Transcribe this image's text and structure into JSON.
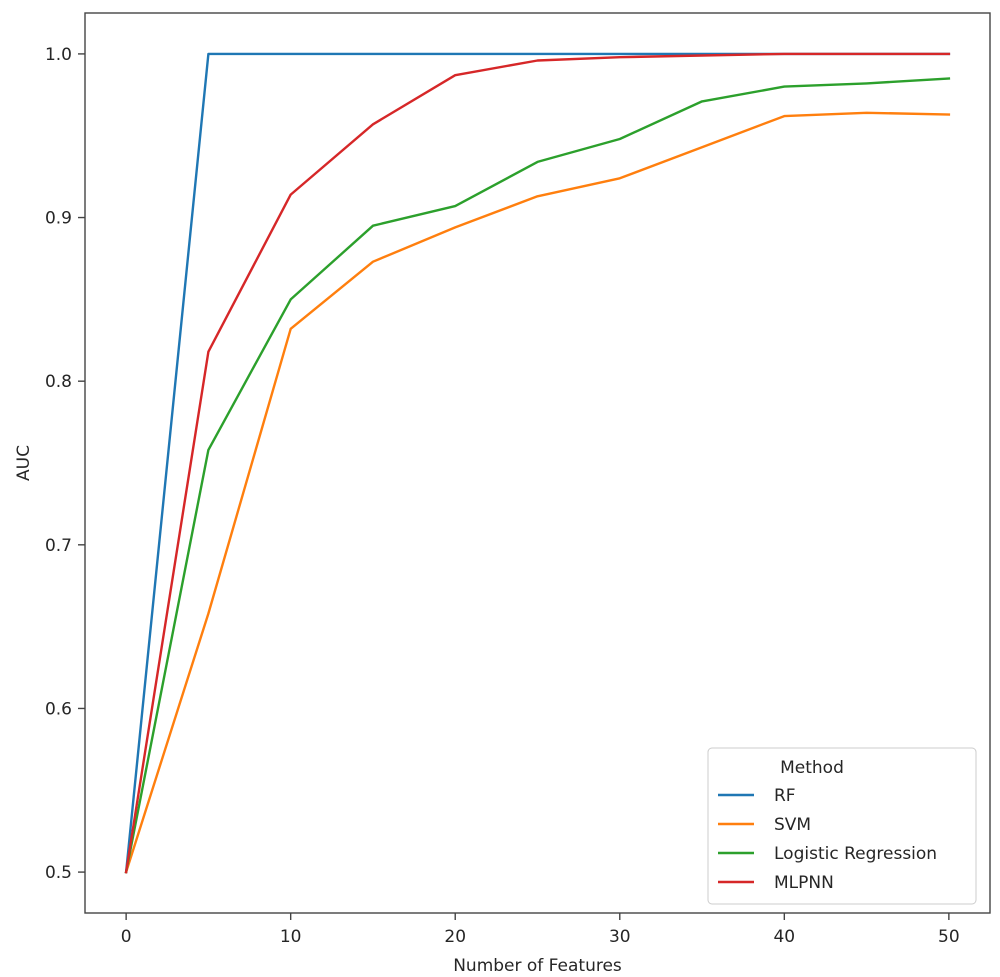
{
  "chart_data": {
    "type": "line",
    "title": "",
    "xlabel": "Number of Features",
    "ylabel": "AUC",
    "xlim": [
      -2.5,
      52.5
    ],
    "ylim": [
      0.475,
      1.025
    ],
    "xticks": [
      0,
      10,
      20,
      30,
      40,
      50
    ],
    "yticks": [
      0.5,
      0.6,
      0.7,
      0.8,
      0.9,
      1.0
    ],
    "xtick_labels": [
      "0",
      "10",
      "20",
      "30",
      "40",
      "50"
    ],
    "ytick_labels": [
      "0.5",
      "0.6",
      "0.7",
      "0.8",
      "0.9",
      "1.0"
    ],
    "grid": false,
    "legend": {
      "title": "Method",
      "placement": "lower-right"
    },
    "x": [
      0,
      5,
      10,
      15,
      20,
      25,
      30,
      35,
      40,
      45,
      50
    ],
    "series": [
      {
        "name": "RF",
        "color": "#1f77b4",
        "values": [
          0.5,
          1.0,
          1.0,
          1.0,
          1.0,
          1.0,
          1.0,
          1.0,
          1.0,
          1.0,
          1.0
        ]
      },
      {
        "name": "SVM",
        "color": "#ff7f0e",
        "values": [
          0.5,
          0.658,
          0.832,
          0.873,
          0.894,
          0.913,
          0.924,
          0.943,
          0.962,
          0.964,
          0.963
        ]
      },
      {
        "name": "Logistic Regression",
        "color": "#2ca02c",
        "values": [
          0.5,
          0.758,
          0.85,
          0.895,
          0.907,
          0.934,
          0.948,
          0.971,
          0.98,
          0.982,
          0.985
        ]
      },
      {
        "name": "MLPNN",
        "color": "#d62728",
        "values": [
          0.5,
          0.818,
          0.914,
          0.957,
          0.987,
          0.996,
          0.998,
          0.999,
          1.0,
          1.0,
          1.0
        ]
      }
    ]
  }
}
